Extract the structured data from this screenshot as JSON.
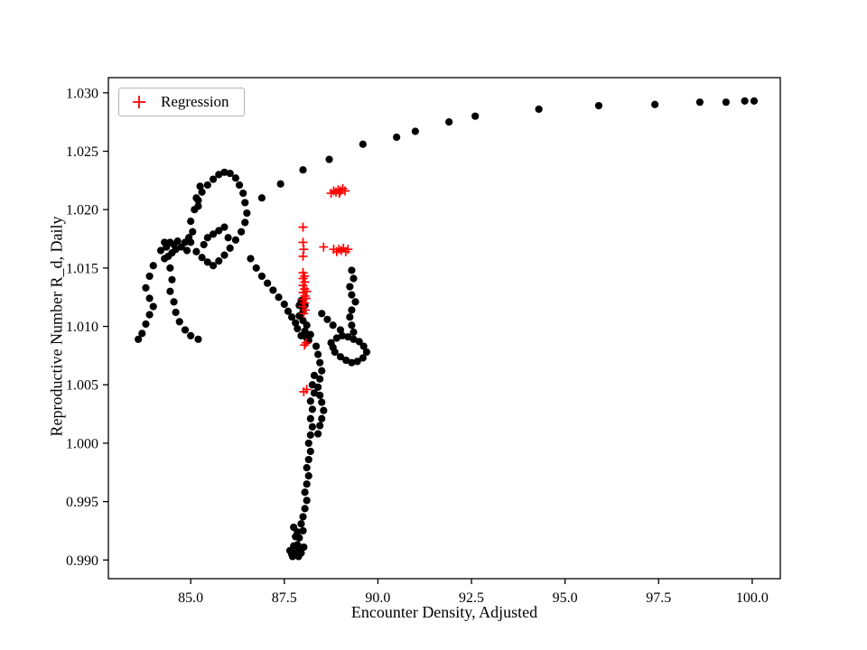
{
  "chart_data": {
    "type": "scatter",
    "title": "",
    "xlabel": "Encounter Density, Adjusted",
    "ylabel": "Reproductive Number R_d, Daily",
    "xlim": [
      82.8,
      100.75
    ],
    "ylim": [
      0.9884,
      1.0313
    ],
    "grid": false,
    "legend_position": "upper left",
    "xticks": [
      85.0,
      87.5,
      90.0,
      92.5,
      95.0,
      97.5,
      100.0
    ],
    "xtick_labels": [
      "85.0",
      "87.5",
      "90.0",
      "92.5",
      "95.0",
      "97.5",
      "100.0"
    ],
    "yticks": [
      0.99,
      0.995,
      1.0,
      1.005,
      1.01,
      1.015,
      1.02,
      1.025,
      1.03
    ],
    "ytick_labels": [
      "0.990",
      "0.995",
      "1.000",
      "1.005",
      "1.010",
      "1.015",
      "1.020",
      "1.025",
      "1.030"
    ],
    "legend": [
      {
        "label": "Regression",
        "marker": "plus",
        "color": "#ff0000"
      }
    ],
    "series": [
      {
        "name": "trajectory",
        "marker": "circle",
        "color": "#000000",
        "points": [
          [
            86.9,
            1.021
          ],
          [
            87.4,
            1.0222
          ],
          [
            88.0,
            1.0234
          ],
          [
            88.7,
            1.0243
          ],
          [
            89.6,
            1.0256
          ],
          [
            90.5,
            1.0262
          ],
          [
            91.0,
            1.0267
          ],
          [
            91.9,
            1.0275
          ],
          [
            92.6,
            1.028
          ],
          [
            94.3,
            1.0286
          ],
          [
            95.9,
            1.0289
          ],
          [
            97.4,
            1.029
          ],
          [
            98.6,
            1.0292
          ],
          [
            99.3,
            1.0292
          ],
          [
            99.8,
            1.0293
          ],
          [
            100.05,
            1.0293
          ],
          [
            84.0,
            1.0152
          ],
          [
            83.9,
            1.0143
          ],
          [
            83.8,
            1.0133
          ],
          [
            83.9,
            1.0124
          ],
          [
            84.0,
            1.0117
          ],
          [
            83.9,
            1.011
          ],
          [
            83.8,
            1.0102
          ],
          [
            83.7,
            1.0094
          ],
          [
            83.6,
            1.0089
          ],
          [
            84.45,
            1.015
          ],
          [
            84.5,
            1.014
          ],
          [
            84.45,
            1.013
          ],
          [
            84.55,
            1.0121
          ],
          [
            84.6,
            1.0112
          ],
          [
            84.7,
            1.0104
          ],
          [
            84.85,
            1.0097
          ],
          [
            85.0,
            1.0092
          ],
          [
            85.2,
            1.0089
          ],
          [
            84.3,
            1.0158
          ],
          [
            84.2,
            1.0165
          ],
          [
            84.35,
            1.0168
          ],
          [
            84.45,
            1.0172
          ],
          [
            84.55,
            1.017
          ],
          [
            84.5,
            1.0163
          ],
          [
            84.4,
            1.016
          ],
          [
            84.6,
            1.0166
          ],
          [
            84.65,
            1.0173
          ],
          [
            84.3,
            1.0172
          ],
          [
            84.75,
            1.0168
          ],
          [
            84.85,
            1.0172
          ],
          [
            84.95,
            1.0176
          ],
          [
            85.05,
            1.0181
          ],
          [
            85.0,
            1.0172
          ],
          [
            84.9,
            1.0165
          ],
          [
            85.0,
            1.019
          ],
          [
            85.1,
            1.02
          ],
          [
            85.2,
            1.0208
          ],
          [
            85.3,
            1.0215
          ],
          [
            85.45,
            1.0221
          ],
          [
            85.6,
            1.0226
          ],
          [
            85.75,
            1.023
          ],
          [
            85.9,
            1.0232
          ],
          [
            86.05,
            1.0231
          ],
          [
            86.2,
            1.0227
          ],
          [
            86.3,
            1.0221
          ],
          [
            86.4,
            1.0214
          ],
          [
            86.45,
            1.0206
          ],
          [
            86.5,
            1.0197
          ],
          [
            86.45,
            1.0189
          ],
          [
            86.35,
            1.0181
          ],
          [
            86.2,
            1.0174
          ],
          [
            86.05,
            1.0167
          ],
          [
            85.9,
            1.0161
          ],
          [
            85.75,
            1.0156
          ],
          [
            85.6,
            1.0152
          ],
          [
            85.45,
            1.0155
          ],
          [
            85.3,
            1.0159
          ],
          [
            85.15,
            1.0164
          ],
          [
            85.15,
            1.021
          ],
          [
            85.25,
            1.022
          ],
          [
            85.2,
            1.0203
          ],
          [
            85.45,
            1.0176
          ],
          [
            85.6,
            1.0179
          ],
          [
            85.75,
            1.0182
          ],
          [
            85.9,
            1.0185
          ],
          [
            85.35,
            1.017
          ],
          [
            86.0,
            1.0176
          ],
          [
            86.6,
            1.0158
          ],
          [
            86.75,
            1.015
          ],
          [
            86.9,
            1.0143
          ],
          [
            87.05,
            1.0137
          ],
          [
            87.2,
            1.0131
          ],
          [
            87.35,
            1.0125
          ],
          [
            87.5,
            1.0119
          ],
          [
            87.6,
            1.0113
          ],
          [
            87.7,
            1.0108
          ],
          [
            87.8,
            1.0103
          ],
          [
            87.85,
            1.0098
          ],
          [
            87.95,
            1.0122
          ],
          [
            88.05,
            1.0118
          ],
          [
            88.0,
            1.0113
          ],
          [
            87.9,
            1.0109
          ],
          [
            88.0,
            1.0105
          ],
          [
            88.1,
            1.0101
          ],
          [
            88.05,
            1.0096
          ],
          [
            87.95,
            1.0092
          ],
          [
            88.1,
            1.009
          ],
          [
            88.2,
            1.0093
          ],
          [
            88.15,
            1.0088
          ],
          [
            87.9,
            1.0118
          ],
          [
            89.3,
            1.0148
          ],
          [
            89.35,
            1.0141
          ],
          [
            89.25,
            1.0134
          ],
          [
            89.3,
            1.0127
          ],
          [
            89.4,
            1.0121
          ],
          [
            89.3,
            1.0114
          ],
          [
            89.25,
            1.0108
          ],
          [
            89.3,
            1.0101
          ],
          [
            89.35,
            1.0095
          ],
          [
            88.5,
            1.0111
          ],
          [
            88.65,
            1.0106
          ],
          [
            88.8,
            1.0101
          ],
          [
            89.0,
            1.0097
          ],
          [
            88.75,
            1.0086
          ],
          [
            88.9,
            1.009
          ],
          [
            89.05,
            1.0092
          ],
          [
            89.2,
            1.0091
          ],
          [
            89.35,
            1.0089
          ],
          [
            89.5,
            1.0087
          ],
          [
            89.62,
            1.0083
          ],
          [
            89.7,
            1.0078
          ],
          [
            89.6,
            1.0073
          ],
          [
            89.45,
            1.007
          ],
          [
            89.3,
            1.0069
          ],
          [
            89.15,
            1.0071
          ],
          [
            89.0,
            1.0074
          ],
          [
            88.85,
            1.0078
          ],
          [
            88.8,
            1.0082
          ],
          [
            88.35,
            1.0083
          ],
          [
            88.4,
            1.0076
          ],
          [
            88.45,
            1.0069
          ],
          [
            88.5,
            1.0062
          ],
          [
            88.45,
            1.0055
          ],
          [
            88.4,
            1.0048
          ],
          [
            88.45,
            1.0041
          ],
          [
            88.5,
            1.0035
          ],
          [
            88.3,
            1.0058
          ],
          [
            88.25,
            1.005
          ],
          [
            88.3,
            1.0043
          ],
          [
            88.2,
            1.0036
          ],
          [
            88.25,
            1.0029
          ],
          [
            88.2,
            1.0021
          ],
          [
            88.25,
            1.0014
          ],
          [
            88.2,
            1.0007
          ],
          [
            88.15,
            1.0
          ],
          [
            88.2,
            0.9993
          ],
          [
            88.15,
            0.9986
          ],
          [
            88.1,
            0.9979
          ],
          [
            88.15,
            0.9972
          ],
          [
            88.1,
            0.9965
          ],
          [
            88.05,
            0.9958
          ],
          [
            88.1,
            0.9951
          ],
          [
            88.05,
            0.9944
          ],
          [
            88.0,
            0.9937
          ],
          [
            87.95,
            0.9931
          ],
          [
            88.0,
            0.9925
          ],
          [
            87.9,
            0.9919
          ],
          [
            87.85,
            0.9913
          ],
          [
            87.9,
            0.9909
          ],
          [
            87.8,
            0.9906
          ],
          [
            87.7,
            0.9905
          ],
          [
            87.75,
            0.9912
          ],
          [
            87.8,
            0.992
          ],
          [
            87.75,
            0.9928
          ],
          [
            87.65,
            0.9908
          ],
          [
            87.72,
            0.9903
          ],
          [
            87.88,
            0.9903
          ],
          [
            87.95,
            0.9906
          ],
          [
            88.02,
            0.9911
          ],
          [
            87.85,
            0.9924
          ],
          [
            88.55,
            1.0028
          ],
          [
            88.5,
            1.0021
          ],
          [
            88.45,
            1.0015
          ],
          [
            88.4,
            1.0008
          ]
        ]
      },
      {
        "name": "Regression",
        "marker": "plus",
        "color": "#ff0000",
        "points": [
          [
            88.75,
            1.0214
          ],
          [
            88.82,
            1.0216
          ],
          [
            88.88,
            1.0215
          ],
          [
            88.94,
            1.0217
          ],
          [
            89.0,
            1.0216
          ],
          [
            89.06,
            1.0218
          ],
          [
            89.12,
            1.0216
          ],
          [
            88.97,
            1.0214
          ],
          [
            88.0,
            1.0185
          ],
          [
            88.55,
            1.0168
          ],
          [
            88.82,
            1.0166
          ],
          [
            88.9,
            1.0164
          ],
          [
            88.96,
            1.0166
          ],
          [
            89.02,
            1.0165
          ],
          [
            89.08,
            1.0167
          ],
          [
            89.14,
            1.0164
          ],
          [
            89.2,
            1.0166
          ],
          [
            88.0,
            1.0172
          ],
          [
            88.02,
            1.0166
          ],
          [
            88.0,
            1.016
          ],
          [
            88.0,
            1.0146
          ],
          [
            88.04,
            1.0143
          ],
          [
            88.0,
            1.0141
          ],
          [
            88.05,
            1.0138
          ],
          [
            88.0,
            1.0135
          ],
          [
            88.04,
            1.0132
          ],
          [
            88.0,
            1.0129
          ],
          [
            88.05,
            1.0126
          ],
          [
            88.0,
            1.0123
          ],
          [
            88.04,
            1.012
          ],
          [
            88.0,
            1.0117
          ],
          [
            88.06,
            1.0114
          ],
          [
            88.02,
            1.0111
          ],
          [
            88.1,
            1.013
          ],
          [
            88.08,
            1.0124
          ],
          [
            88.08,
            1.0086
          ],
          [
            88.04,
            1.0084
          ],
          [
            88.1,
            1.0046
          ],
          [
            88.02,
            1.0044
          ]
        ]
      }
    ]
  },
  "legend": {
    "regression_label": "Regression"
  },
  "axes": {
    "xlabel": "Encounter Density, Adjusted",
    "ylabel": "Reproductive Number R_d, Daily"
  },
  "colors": {
    "background": "#ffffff",
    "axis": "#000000",
    "dots": "#000000",
    "regression": "#ff0000",
    "legend_border": "#b3b3b3"
  }
}
